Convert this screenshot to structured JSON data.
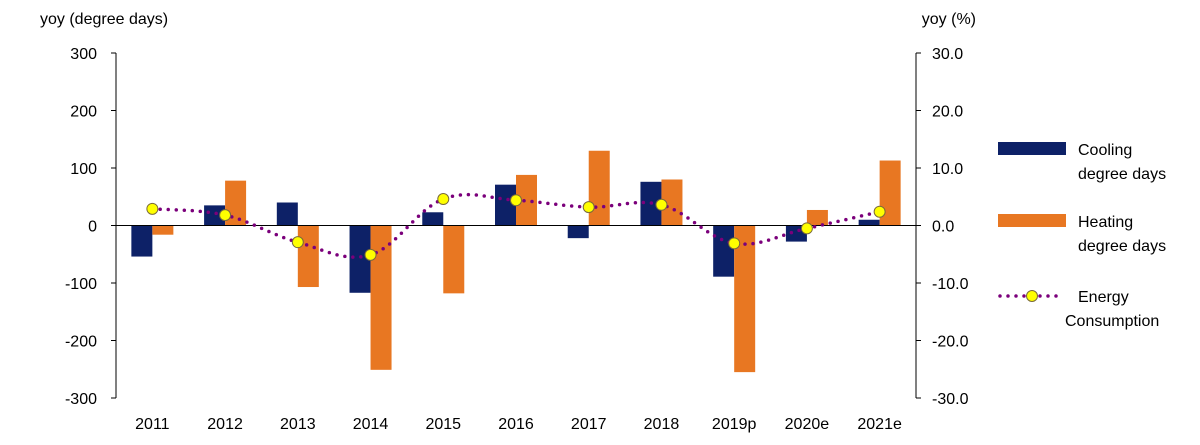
{
  "chart_data": {
    "type": "bar",
    "categories": [
      "2011",
      "2012",
      "2013",
      "2014",
      "2015",
      "2016",
      "2017",
      "2018",
      "2019p",
      "2020e",
      "2021e"
    ],
    "series": [
      {
        "name": "Cooling degree days",
        "axis": "left",
        "values": [
          -54,
          35,
          40,
          -117,
          23,
          71,
          -22,
          76,
          -89,
          -28,
          10
        ],
        "color": "#0d2167"
      },
      {
        "name": "Heating degree days",
        "axis": "left",
        "values": [
          -16,
          78,
          -107,
          -251,
          -118,
          88,
          130,
          80,
          -255,
          27,
          113
        ],
        "color": "#e87722"
      },
      {
        "name": "Energy Consumption",
        "axis": "right",
        "type": "line",
        "style": "dotted",
        "values": [
          2.9,
          1.8,
          -2.9,
          -5.1,
          4.6,
          4.4,
          3.2,
          3.6,
          -3.1,
          -0.5,
          2.4
        ],
        "color": "#7b007b",
        "marker_color": "#ffff00"
      }
    ],
    "left_axis": {
      "title": "yoy (degree days)",
      "ylim": [
        -300,
        300
      ],
      "ticks": [
        "300",
        "200",
        "100",
        "0",
        "-100",
        "-200",
        "-300"
      ]
    },
    "right_axis": {
      "title": "yoy (%)",
      "ylim": [
        -30,
        30
      ],
      "ticks": [
        "30.0",
        "20.0",
        "10.0",
        "0.0",
        "-10.0",
        "-20.0",
        "-30.0"
      ]
    },
    "legend_position": "right",
    "legend": [
      {
        "lines": [
          "Cooling",
          "degree days"
        ]
      },
      {
        "lines": [
          "Heating",
          "degree days"
        ]
      },
      {
        "lines": [
          "Energy",
          "Consumption"
        ]
      }
    ],
    "grid": false
  }
}
